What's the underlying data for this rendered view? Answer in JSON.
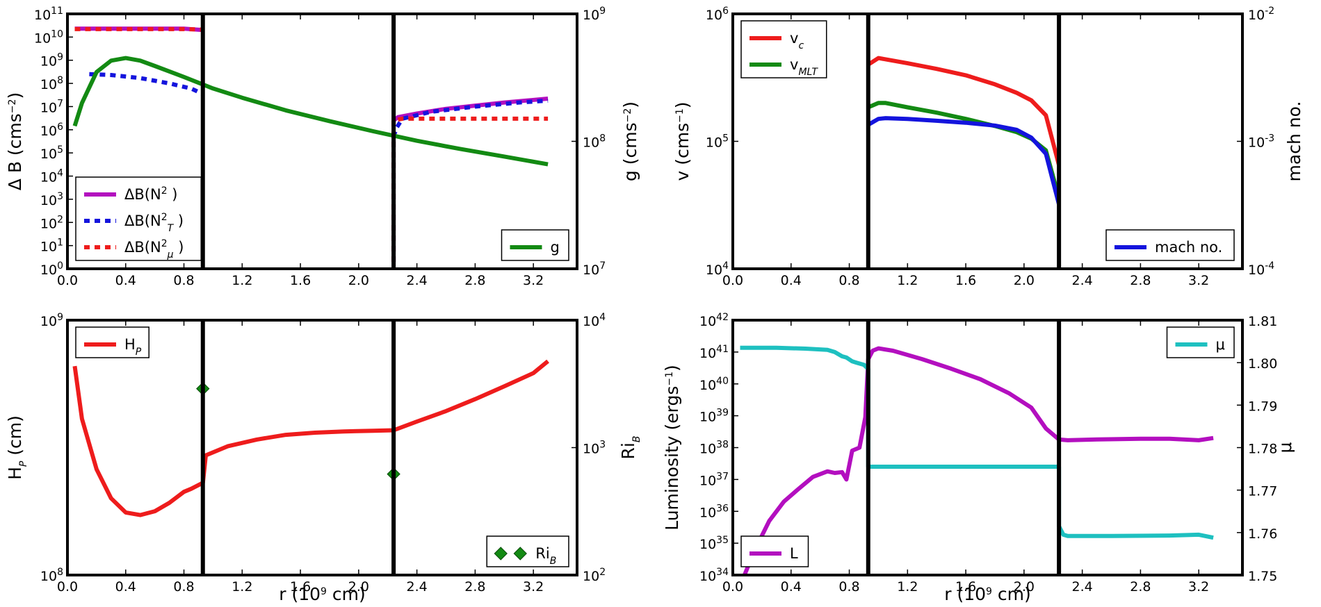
{
  "colors": {
    "red": "#ee1c1c",
    "blue": "#1414dd",
    "green": "#138a13",
    "magenta": "#b30fbf",
    "cyan": "#1ec0c0",
    "black": "#000000"
  },
  "x_tick_labels": [
    "0.0",
    "0.4",
    "0.8",
    "1.2",
    "1.6",
    "2.0",
    "2.4",
    "2.8",
    "3.2"
  ],
  "x_axis_label": {
    "text": "r (10",
    "sup": "9",
    "tail": " cm)"
  },
  "chart_data": [
    {
      "id": "top-left",
      "type": "line",
      "xlim": [
        0.0,
        3.5
      ],
      "ylabel": {
        "text": "Δ B (cms",
        "sup": "−2",
        "tail": ")"
      },
      "ylabel2": {
        "text": "g (cms",
        "sup": "−2",
        "tail": ")"
      },
      "yscale": "log",
      "ylim": [
        1,
        100000000000.0
      ],
      "y2scale": "log",
      "y2lim": [
        10000000.0,
        1000000000.0
      ],
      "ytick_labels": [
        {
          "b": "10",
          "e": "0"
        },
        {
          "b": "10",
          "e": "1"
        },
        {
          "b": "10",
          "e": "2"
        },
        {
          "b": "10",
          "e": "3"
        },
        {
          "b": "10",
          "e": "4"
        },
        {
          "b": "10",
          "e": "5"
        },
        {
          "b": "10",
          "e": "6"
        },
        {
          "b": "10",
          "e": "7"
        },
        {
          "b": "10",
          "e": "8"
        },
        {
          "b": "10",
          "e": "9"
        },
        {
          "b": "10",
          "e": "10"
        },
        {
          "b": "10",
          "e": "11"
        }
      ],
      "y2tick_labels": [
        {
          "b": "10",
          "e": "7"
        },
        {
          "b": "10",
          "e": "8"
        },
        {
          "b": "10",
          "e": "9"
        }
      ],
      "vlines": [
        0.93,
        2.24
      ],
      "series": [
        {
          "name": "ΔB(N²)",
          "color": "magenta",
          "style": "solid",
          "axis": "y",
          "x": [
            0.05,
            0.4,
            0.8,
            0.93,
            null,
            2.24,
            2.27,
            2.4,
            2.6,
            2.8,
            3.0,
            3.3
          ],
          "y": [
            23000000000.0,
            23000000000.0,
            23000000000.0,
            20000000000.0,
            null,
            2500000.0,
            3500000.0,
            5000000.0,
            8000000.0,
            11000000.0,
            15000000.0,
            22000000.0
          ]
        },
        {
          "name": "ΔB(N²_T)",
          "color": "blue",
          "style": "dash",
          "axis": "y",
          "x": [
            0.15,
            0.3,
            0.5,
            0.7,
            0.85,
            0.93,
            null,
            2.24,
            2.24,
            2.26,
            2.3,
            2.5,
            2.8,
            3.1,
            3.3
          ],
          "y": [
            250000000.0,
            230000000.0,
            170000000.0,
            100000000.0,
            60000000.0,
            35000000.0,
            null,
            2,
            500000.0,
            1200000.0,
            3000000.0,
            6000000.0,
            10000000.0,
            15000000.0,
            18000000.0
          ]
        },
        {
          "name": "ΔB(N²_μ)",
          "color": "red",
          "style": "dash",
          "axis": "y",
          "x": [
            0.05,
            0.4,
            0.8,
            0.93,
            null,
            2.24,
            2.24,
            2.3,
            2.6,
            3.0,
            3.3
          ],
          "y": [
            22000000000.0,
            22000000000.0,
            22000000000.0,
            21000000000.0,
            null,
            2,
            2500000.0,
            3000000.0,
            3000000.0,
            3000000.0,
            3000000.0
          ]
        },
        {
          "name": "g",
          "color": "green",
          "style": "solid",
          "axis": "y2",
          "x": [
            0.05,
            0.1,
            0.2,
            0.3,
            0.4,
            0.5,
            0.6,
            0.8,
            1.0,
            1.2,
            1.5,
            1.8,
            2.1,
            2.4,
            2.7,
            3.0,
            3.3
          ],
          "y": [
            132000000.0,
            200000000.0,
            350000000.0,
            430000000.0,
            450000000.0,
            430000000.0,
            390000000.0,
            320000000.0,
            260000000.0,
            220000000.0,
            175000000.0,
            144000000.0,
            120000000.0,
            101000000.0,
            87000000.0,
            76000000.0,
            66000000.0
          ]
        }
      ],
      "legends": [
        {
          "pos": "bottom-left",
          "entries": [
            {
              "series": 0,
              "label": "ΔB(N",
              "sup": "2",
              "sub": "",
              "tail": " )"
            },
            {
              "series": 1,
              "label": "ΔB(N",
              "sup": "2",
              "sub": "T",
              "tail": " )"
            },
            {
              "series": 2,
              "label": "ΔB(N",
              "sup": "2",
              "sub": "μ",
              "tail": " )"
            }
          ]
        },
        {
          "pos": "bottom-right",
          "entries": [
            {
              "series": 3,
              "label": "g",
              "sup": "",
              "sub": "",
              "tail": ""
            }
          ]
        }
      ]
    },
    {
      "id": "top-right",
      "type": "line",
      "xlim": [
        0.0,
        3.5
      ],
      "ylabel": {
        "text": "v (cms",
        "sup": "−1",
        "tail": ")"
      },
      "ylabel2": {
        "text": "mach no.",
        "sup": "",
        "tail": ""
      },
      "yscale": "log",
      "ylim": [
        10000.0,
        1000000.0
      ],
      "y2scale": "log",
      "y2lim": [
        0.0001,
        0.01
      ],
      "ytick_labels": [
        {
          "b": "10",
          "e": "4"
        },
        {
          "b": "10",
          "e": "5"
        },
        {
          "b": "10",
          "e": "6"
        }
      ],
      "y2tick_labels": [
        {
          "b": "10",
          "e": "-4"
        },
        {
          "b": "10",
          "e": "-3"
        },
        {
          "b": "10",
          "e": "-2"
        }
      ],
      "vlines": [
        0.93,
        2.24
      ],
      "series": [
        {
          "name": "v_c",
          "color": "red",
          "style": "solid",
          "axis": "y",
          "x": [
            0.93,
            1.0,
            1.05,
            1.2,
            1.4,
            1.6,
            1.8,
            1.95,
            2.05,
            2.15,
            2.24
          ],
          "y": [
            400000.0,
            450000.0,
            440000.0,
            410000.0,
            370000.0,
            330000.0,
            280000.0,
            240000.0,
            210000.0,
            160000.0,
            65000.0
          ]
        },
        {
          "name": "v_MLT",
          "color": "green",
          "style": "solid",
          "axis": "y",
          "x": [
            0.93,
            1.0,
            1.05,
            1.2,
            1.4,
            1.6,
            1.8,
            1.95,
            2.05,
            2.15,
            2.24
          ],
          "y": [
            185000.0,
            200000.0,
            200000.0,
            185000.0,
            168000.0,
            150000.0,
            132000.0,
            118000.0,
            105000.0,
            85000.0,
            36000.0
          ]
        },
        {
          "name": "mach no.",
          "color": "blue",
          "style": "solid",
          "axis": "y2",
          "x": [
            0.93,
            1.0,
            1.05,
            1.2,
            1.4,
            1.6,
            1.8,
            1.95,
            2.05,
            2.15,
            2.24
          ],
          "y": [
            0.00135,
            0.0015,
            0.00152,
            0.0015,
            0.00145,
            0.0014,
            0.00133,
            0.00123,
            0.00107,
            0.0008,
            0.00032
          ]
        }
      ],
      "legends": [
        {
          "pos": "top-left",
          "entries": [
            {
              "series": 0,
              "label": "v",
              "sup": "",
              "sub": "c",
              "tail": ""
            },
            {
              "series": 1,
              "label": "v",
              "sup": "",
              "sub": "MLT",
              "tail": ""
            }
          ]
        },
        {
          "pos": "bottom-right",
          "entries": [
            {
              "series": 2,
              "label": "mach no.",
              "sup": "",
              "sub": "",
              "tail": ""
            }
          ]
        }
      ]
    },
    {
      "id": "bottom-left",
      "type": "line",
      "xlim": [
        0.0,
        3.5
      ],
      "ylabel": {
        "text": "H",
        "sub": "P",
        "tail": " (cm)"
      },
      "ylabel2": {
        "text": "Ri",
        "sub": "B",
        "tail": ""
      },
      "yscale": "log",
      "ylim": [
        100000000.0,
        1000000000.0
      ],
      "y2scale": "log",
      "y2lim": [
        100,
        10000
      ],
      "ytick_labels": [
        {
          "b": "10",
          "e": "8"
        },
        {
          "b": "10",
          "e": "9"
        }
      ],
      "y2tick_labels": [
        {
          "b": "10",
          "e": "2"
        },
        {
          "b": "10",
          "e": "3"
        },
        {
          "b": "10",
          "e": "4"
        }
      ],
      "vlines": [
        0.93,
        2.24
      ],
      "series": [
        {
          "name": "H_P",
          "color": "red",
          "style": "solid",
          "axis": "y",
          "x": [
            0.05,
            0.1,
            0.2,
            0.3,
            0.4,
            0.5,
            0.6,
            0.7,
            0.8,
            0.85,
            0.93,
            0.95,
            1.1,
            1.3,
            1.5,
            1.7,
            1.9,
            2.1,
            2.24,
            2.4,
            2.6,
            2.8,
            3.0,
            3.2,
            3.3
          ],
          "y": [
            660000000.0,
            410000000.0,
            260000000.0,
            200000000.0,
            176000000.0,
            172000000.0,
            178000000.0,
            192000000.0,
            212000000.0,
            218000000.0,
            230000000.0,
            295000000.0,
            320000000.0,
            340000000.0,
            355000000.0,
            362000000.0,
            366000000.0,
            368000000.0,
            370000000.0,
            400000000.0,
            440000000.0,
            490000000.0,
            550000000.0,
            620000000.0,
            690000000.0
          ]
        },
        {
          "name": "Ri_B",
          "color": "green",
          "style": "diamond",
          "axis": "y2",
          "x": [
            0.93,
            2.24
          ],
          "y": [
            2900,
            620
          ]
        }
      ],
      "legends": [
        {
          "pos": "top-left",
          "entries": [
            {
              "series": 0,
              "label": "H",
              "sup": "",
              "sub": "P",
              "tail": ""
            }
          ]
        },
        {
          "pos": "bottom-right",
          "entries": [
            {
              "series": 1,
              "label": "Ri",
              "sup": "",
              "sub": "B",
              "tail": ""
            }
          ]
        }
      ]
    },
    {
      "id": "bottom-right",
      "type": "line",
      "xlim": [
        0.0,
        3.5
      ],
      "ylabel": {
        "text": "Luminosity (ergs",
        "sup": "−1",
        "tail": ")"
      },
      "ylabel2": {
        "text": "μ",
        "sup": "",
        "tail": ""
      },
      "yscale": "log",
      "ylim": [
        1e+34,
        1e+42
      ],
      "y2scale": "linear",
      "y2lim": [
        1.75,
        1.81
      ],
      "ytick_labels": [
        {
          "b": "10",
          "e": "34"
        },
        {
          "b": "10",
          "e": "35"
        },
        {
          "b": "10",
          "e": "36"
        },
        {
          "b": "10",
          "e": "37"
        },
        {
          "b": "10",
          "e": "38"
        },
        {
          "b": "10",
          "e": "39"
        },
        {
          "b": "10",
          "e": "40"
        },
        {
          "b": "10",
          "e": "41"
        },
        {
          "b": "10",
          "e": "42"
        }
      ],
      "y2tick_labels": [
        {
          "b": "1.75",
          "e": ""
        },
        {
          "b": "1.76",
          "e": ""
        },
        {
          "b": "1.77",
          "e": ""
        },
        {
          "b": "1.78",
          "e": ""
        },
        {
          "b": "1.79",
          "e": ""
        },
        {
          "b": "1.80",
          "e": ""
        },
        {
          "b": "1.81",
          "e": ""
        }
      ],
      "vlines": [
        0.93,
        2.24
      ],
      "series": [
        {
          "name": "L",
          "color": "magenta",
          "style": "solid",
          "axis": "y",
          "x": [
            0.08,
            0.15,
            0.25,
            0.35,
            0.45,
            0.55,
            0.65,
            0.7,
            0.75,
            0.78,
            0.82,
            0.87,
            0.91,
            0.93,
            0.96,
            1.0,
            1.1,
            1.3,
            1.5,
            1.7,
            1.9,
            2.05,
            2.15,
            2.24,
            2.3,
            2.5,
            2.8,
            3.0,
            3.2,
            3.3
          ],
          "y": [
            1e+34,
            6e+34,
            5e+35,
            2e+36,
            5e+36,
            1.2e+37,
            1.8e+37,
            1.6e+37,
            1.7e+37,
            1e+37,
            8e+37,
            1e+38,
            9e+38,
            6e+40,
            1.1e+41,
            1.3e+41,
            1.1e+41,
            6e+40,
            3e+40,
            1.4e+40,
            5e+39,
            1.8e+39,
            4e+38,
            1.8e+38,
            1.7e+38,
            1.8e+38,
            1.9e+38,
            1.9e+38,
            1.7e+38,
            2e+38
          ]
        },
        {
          "name": "μ",
          "color": "cyan",
          "style": "solid",
          "axis": "y2",
          "x": [
            0.05,
            0.3,
            0.5,
            0.65,
            0.7,
            0.75,
            0.78,
            0.82,
            0.85,
            0.9,
            0.93,
            0.93,
            1.5,
            2.0,
            2.24,
            2.24,
            2.27,
            2.3,
            2.6,
            3.0,
            3.2,
            3.3
          ],
          "y": [
            1.8035,
            1.8035,
            1.8033,
            1.803,
            1.8025,
            1.8015,
            1.8012,
            1.8003,
            1.8,
            1.7995,
            1.7985,
            1.7755,
            1.7755,
            1.7755,
            1.7755,
            1.7615,
            1.7595,
            1.7592,
            1.7592,
            1.7593,
            1.7595,
            1.7588
          ]
        }
      ],
      "legends": [
        {
          "pos": "top-right",
          "entries": [
            {
              "series": 1,
              "label": "μ",
              "sup": "",
              "sub": "",
              "tail": ""
            }
          ]
        },
        {
          "pos": "bottom-left",
          "entries": [
            {
              "series": 0,
              "label": "L",
              "sup": "",
              "sub": "",
              "tail": ""
            }
          ]
        }
      ]
    }
  ]
}
